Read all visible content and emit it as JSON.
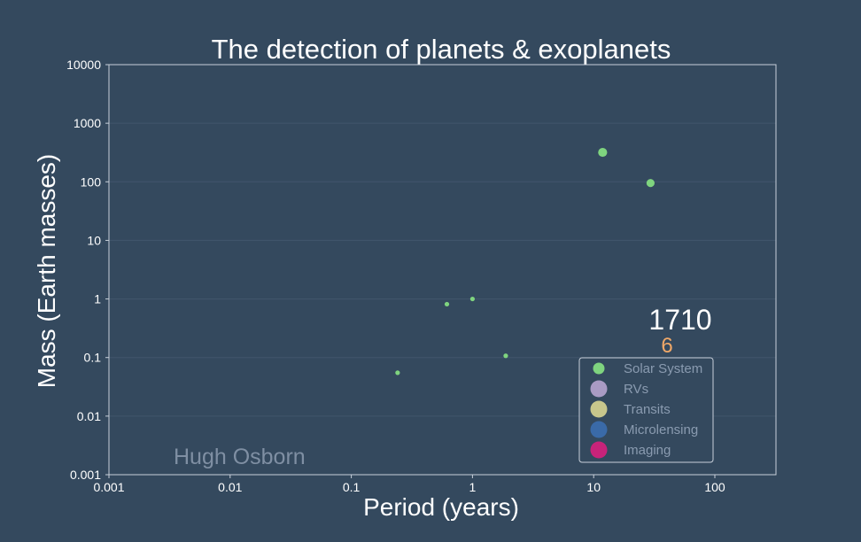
{
  "chart_data": {
    "type": "scatter",
    "title": "The detection of planets & exoplanets",
    "xlabel": "Period (years)",
    "ylabel": "Mass (Earth masses)",
    "x_scale": "log",
    "y_scale": "log",
    "xlim": [
      0.001,
      300
    ],
    "ylim": [
      0.001,
      10000
    ],
    "x_ticks": [
      0.001,
      0.01,
      0.1,
      1,
      10,
      100
    ],
    "x_tick_labels": [
      "0.001",
      "0.01",
      "0.1",
      "1",
      "10",
      "100"
    ],
    "y_ticks": [
      0.001,
      0.01,
      0.1,
      1,
      10,
      100,
      1000,
      10000
    ],
    "y_tick_labels": [
      "0.001",
      "0.01",
      "0.1",
      "1",
      "10",
      "100",
      "1000",
      "10000"
    ],
    "grid": true,
    "legend_position": "lower-right",
    "series": [
      {
        "name": "Solar System",
        "color": "#7fd47f",
        "points": [
          {
            "x": 0.241,
            "y": 0.055
          },
          {
            "x": 0.615,
            "y": 0.815
          },
          {
            "x": 1.0,
            "y": 1.0
          },
          {
            "x": 1.881,
            "y": 0.107
          },
          {
            "x": 11.86,
            "y": 317.8
          },
          {
            "x": 29.46,
            "y": 95.2
          }
        ]
      },
      {
        "name": "RVs",
        "color": "#a99bc4",
        "points": []
      },
      {
        "name": "Transits",
        "color": "#c7c68c",
        "points": []
      },
      {
        "name": "Microlensing",
        "color": "#3a6aa8",
        "points": []
      },
      {
        "name": "Imaging",
        "color": "#c8237a",
        "points": []
      }
    ]
  },
  "year": "1710",
  "count": "6",
  "count_color": "#f0a868",
  "watermark": "Hugh Osborn",
  "colors": {
    "background": "#34495e",
    "frame": "#c8d0da",
    "grid": "#41566c"
  }
}
